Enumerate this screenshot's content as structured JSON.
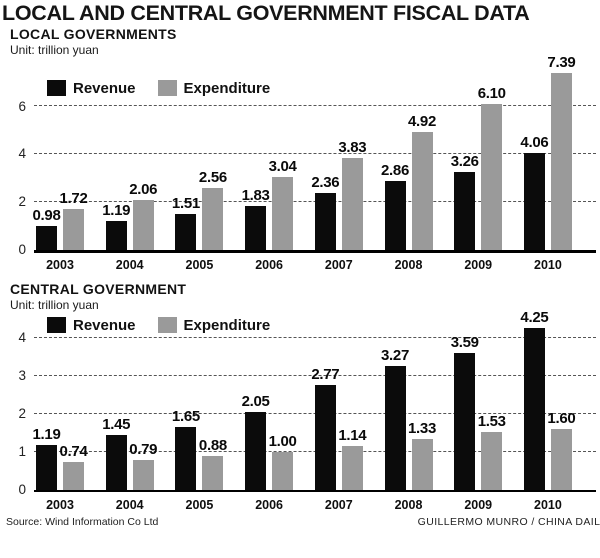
{
  "page": {
    "title": "LOCAL AND CENTRAL GOVERNMENT FISCAL DATA",
    "source": "Source: Wind Information Co Ltd",
    "credit": "GUILLERMO MUNRO / CHINA DAILY"
  },
  "colors": {
    "revenue": "#0b0b0b",
    "expenditure": "#9a9a9a",
    "gridline": "#555555",
    "axis": "#000000"
  },
  "chart_data": [
    {
      "type": "bar",
      "title": "LOCAL GOVERNMENTS",
      "unit": "Unit: trillion yuan",
      "categories": [
        "2003",
        "2004",
        "2005",
        "2006",
        "2007",
        "2008",
        "2009",
        "2010"
      ],
      "series": [
        {
          "name": "Revenue",
          "color": "#0b0b0b",
          "values": [
            0.98,
            1.19,
            1.51,
            1.83,
            2.36,
            2.86,
            3.26,
            4.06
          ]
        },
        {
          "name": "Expenditure",
          "color": "#9a9a9a",
          "values": [
            1.72,
            2.06,
            2.56,
            3.04,
            3.83,
            4.92,
            6.1,
            7.39
          ]
        }
      ],
      "yticks": [
        0,
        2,
        4,
        6
      ],
      "ymax": 7.6,
      "ylim": [
        0,
        7.6
      ],
      "grid": "horizontal-dashed",
      "legend_position": "top-left",
      "value_labels": "above-bars, 2 decimals"
    },
    {
      "type": "bar",
      "title": "CENTRAL GOVERNMENT",
      "unit": "Unit: trillion yuan",
      "categories": [
        "2003",
        "2004",
        "2005",
        "2006",
        "2007",
        "2008",
        "2009",
        "2010"
      ],
      "series": [
        {
          "name": "Revenue",
          "color": "#0b0b0b",
          "values": [
            1.19,
            1.45,
            1.65,
            2.05,
            2.77,
            3.27,
            3.59,
            4.25
          ]
        },
        {
          "name": "Expenditure",
          "color": "#9a9a9a",
          "values": [
            0.74,
            0.79,
            0.88,
            1.0,
            1.14,
            1.33,
            1.53,
            1.6
          ]
        }
      ],
      "yticks": [
        0,
        1,
        2,
        3,
        4
      ],
      "ymax": 4.4,
      "ylim": [
        0,
        4.4
      ],
      "grid": "horizontal-dashed",
      "legend_position": "top-left",
      "value_labels": "above-bars, 2 decimals"
    }
  ]
}
